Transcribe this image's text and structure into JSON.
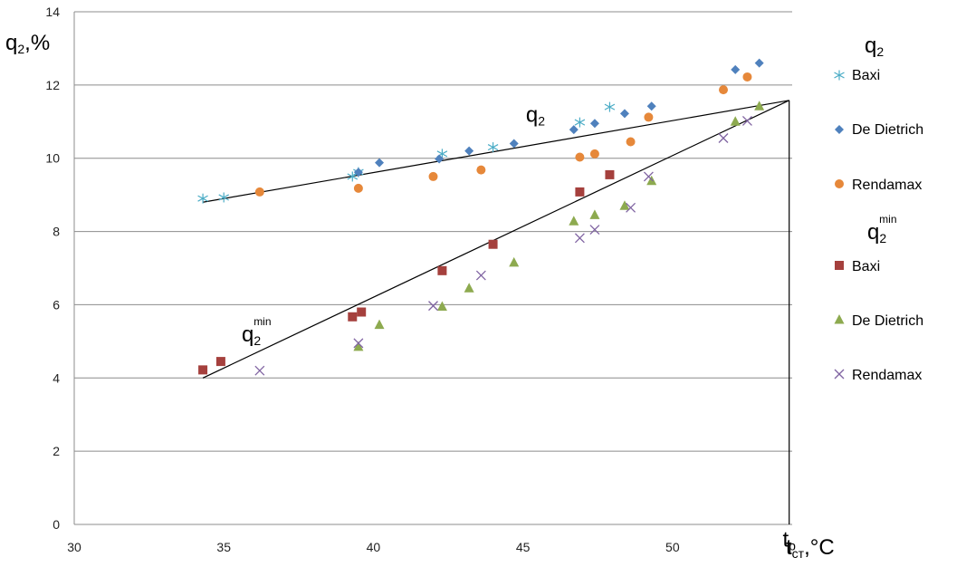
{
  "chart_data": {
    "type": "scatter",
    "title": "",
    "xlabel": "t",
    "xlabel_sub": "ст",
    "xlabel_unit": ",°C",
    "ylabel": "q",
    "ylabel_sub": "2",
    "ylabel_unit": ",%",
    "xlim": [
      30,
      54
    ],
    "ylim": [
      0,
      14
    ],
    "x_ticks": [
      30,
      35,
      40,
      45,
      50
    ],
    "y_ticks": [
      0,
      2,
      4,
      6,
      8,
      10,
      12,
      14
    ],
    "grid": "horizontal",
    "legend_position": "right",
    "legend_groups": [
      {
        "label": "q",
        "sub": "2",
        "sup": "",
        "series": [
          0,
          1,
          2
        ]
      },
      {
        "label": "q",
        "sub": "2",
        "sup": "min",
        "series": [
          3,
          4,
          5
        ]
      }
    ],
    "series": [
      {
        "name": "Baxi",
        "marker": "asterisk",
        "color": "#4bacc6",
        "points": [
          [
            34.3,
            8.9
          ],
          [
            35,
            8.93
          ],
          [
            39.3,
            9.5
          ],
          [
            39.5,
            9.62
          ],
          [
            42.3,
            10.12
          ],
          [
            44,
            10.3
          ],
          [
            46.9,
            10.98
          ],
          [
            47.9,
            11.4
          ]
        ]
      },
      {
        "name": "De Dietrich",
        "marker": "diamond",
        "color": "#4f81bd",
        "points": [
          [
            39.5,
            9.62
          ],
          [
            40.2,
            9.88
          ],
          [
            42.2,
            9.98
          ],
          [
            43.2,
            10.2
          ],
          [
            44.7,
            10.4
          ],
          [
            46.7,
            10.78
          ],
          [
            47.4,
            10.95
          ],
          [
            48.4,
            11.22
          ],
          [
            49.3,
            11.42
          ],
          [
            52.1,
            12.42
          ],
          [
            52.9,
            12.6
          ]
        ]
      },
      {
        "name": "Rendamax",
        "marker": "circle",
        "color": "#e6883a",
        "points": [
          [
            36.2,
            9.08
          ],
          [
            39.5,
            9.18
          ],
          [
            42,
            9.5
          ],
          [
            43.6,
            9.68
          ],
          [
            46.9,
            10.03
          ],
          [
            47.4,
            10.12
          ],
          [
            48.6,
            10.45
          ],
          [
            49.2,
            11.12
          ],
          [
            51.7,
            11.87
          ],
          [
            52.5,
            12.22
          ]
        ]
      },
      {
        "name": "Baxi",
        "marker": "square",
        "color": "#a5403d",
        "points": [
          [
            34.3,
            4.22
          ],
          [
            34.9,
            4.45
          ],
          [
            39.3,
            5.67
          ],
          [
            39.6,
            5.8
          ],
          [
            42.3,
            6.93
          ],
          [
            44,
            7.65
          ],
          [
            46.9,
            9.08
          ],
          [
            47.9,
            9.55
          ]
        ]
      },
      {
        "name": "De Dietrich",
        "marker": "triangle",
        "color": "#8daa4f",
        "points": [
          [
            39.5,
            4.85
          ],
          [
            40.2,
            5.45
          ],
          [
            42.3,
            5.95
          ],
          [
            43.2,
            6.45
          ],
          [
            44.7,
            7.15
          ],
          [
            46.7,
            8.28
          ],
          [
            47.4,
            8.45
          ],
          [
            48.4,
            8.7
          ],
          [
            49.3,
            9.38
          ],
          [
            52.1,
            11.0
          ],
          [
            52.9,
            11.42
          ]
        ]
      },
      {
        "name": "Rendamax",
        "marker": "x",
        "color": "#8064a2",
        "points": [
          [
            36.2,
            4.2
          ],
          [
            39.5,
            4.95
          ],
          [
            42,
            5.97
          ],
          [
            43.6,
            6.8
          ],
          [
            46.9,
            7.82
          ],
          [
            47.4,
            8.05
          ],
          [
            48.6,
            8.65
          ],
          [
            49.2,
            9.5
          ],
          [
            51.7,
            10.55
          ],
          [
            52.5,
            11.02
          ]
        ]
      }
    ],
    "lines": [
      {
        "from": [
          34.3,
          8.8
        ],
        "to": [
          53.9,
          11.58
        ]
      },
      {
        "from": [
          34.3,
          4.0
        ],
        "to": [
          53.9,
          11.58
        ]
      },
      {
        "from": [
          53.9,
          11.58
        ],
        "to": [
          53.9,
          0
        ]
      }
    ],
    "annotations": [
      {
        "text": "q",
        "sub": "2",
        "sup": "",
        "x": 45.1,
        "y": 11.0
      },
      {
        "text": "q",
        "sub": "2",
        "sup": "min",
        "x": 35.6,
        "y": 5.0
      },
      {
        "text": "t",
        "sub": "p",
        "sup": "",
        "x": 53.9,
        "y": -0.6
      }
    ]
  }
}
